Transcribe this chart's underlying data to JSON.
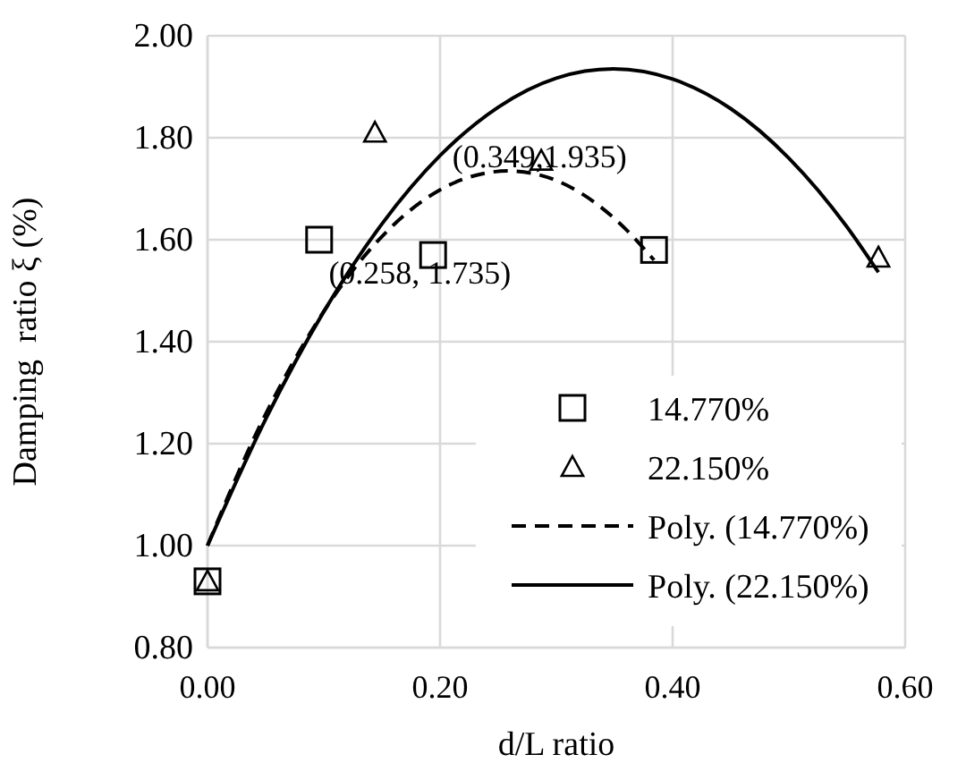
{
  "chart_data": {
    "type": "scatter",
    "xlabel": "d/L ratio",
    "ylabel": "Damping  ratio ξ (%)",
    "xlim": [
      0,
      0.6
    ],
    "xticks": [
      {
        "value": 0,
        "label": "0.00"
      },
      {
        "value": 0.2,
        "label": "0.20"
      },
      {
        "value": 0.4,
        "label": "0.40"
      },
      {
        "value": 0.6,
        "label": "0.60"
      }
    ],
    "ylim": [
      0.8,
      2
    ],
    "yticks": [
      {
        "value": 0.8,
        "label": "0.80"
      },
      {
        "value": 1,
        "label": "1.00"
      },
      {
        "value": 1.2,
        "label": "1.20"
      },
      {
        "value": 1.4,
        "label": "1.40"
      },
      {
        "value": 1.6,
        "label": "1.60"
      },
      {
        "value": 1.8,
        "label": "1.80"
      },
      {
        "value": 2,
        "label": "2.00"
      }
    ],
    "grid": true,
    "legend": "bottom right",
    "series": [
      {
        "name": "14.770%",
        "type": "scatter",
        "marker": "square",
        "color": "#000000",
        "x": [
          0,
          0.096,
          0.194,
          0.384
        ],
        "values": [
          0.93,
          1.6,
          1.57,
          1.58
        ]
      },
      {
        "name": "22.150%",
        "type": "scatter",
        "marker": "triangle",
        "color": "#000000",
        "x": [
          0,
          0.144,
          0.287,
          0.577
        ],
        "values": [
          0.93,
          1.81,
          1.755,
          1.565
        ]
      },
      {
        "name": "Poly. (14.770%)",
        "type": "line",
        "line_style": "dashed",
        "marker": "none",
        "color": "#000000",
        "x": [
          0,
          0.04,
          0.08,
          0.12,
          0.16,
          0.2,
          0.24,
          0.258,
          0.28,
          0.32,
          0.36,
          0.384
        ],
        "values": [
          1.0,
          1.211,
          1.385,
          1.525,
          1.629,
          1.698,
          1.731,
          1.735,
          1.73,
          1.693,
          1.62,
          1.56
        ]
      },
      {
        "name": "Poly. (22.150%)",
        "type": "line",
        "line_style": "solid",
        "marker": "none",
        "color": "#000000",
        "x": [
          0,
          0.05,
          0.1,
          0.15,
          0.2,
          0.25,
          0.3,
          0.349,
          0.4,
          0.45,
          0.5,
          0.55,
          0.577
        ],
        "values": [
          1.0,
          1.248,
          1.459,
          1.631,
          1.765,
          1.86,
          1.917,
          1.935,
          1.915,
          1.857,
          1.76,
          1.625,
          1.536
        ]
      }
    ],
    "annotations": [
      {
        "text": "(0.349,1.935)",
        "x": 0.349,
        "y": 1.935
      },
      {
        "text": "(0.258, 1.735)",
        "x": 0.258,
        "y": 1.735
      }
    ]
  }
}
